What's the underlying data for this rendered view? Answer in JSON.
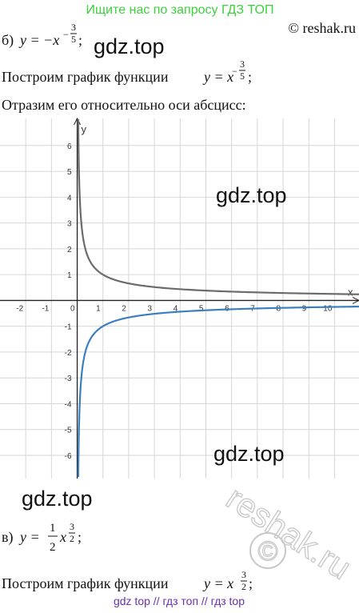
{
  "header": {
    "banner": "Ищите нас по запросу ГДЗ ТОП",
    "copyright": "© reshak.ru"
  },
  "part_b": {
    "label": "б)",
    "formula": "y = −x",
    "exp_sign": "−",
    "exp_num": "3",
    "exp_den": "5",
    "end": ";"
  },
  "text1": {
    "before": "Построим график функции",
    "formula": "y = x",
    "exp_sign": "−",
    "exp_num": "3",
    "exp_den": "5",
    "end": ";"
  },
  "text2": "Отразим его относительно оси абсцисс:",
  "graph": {
    "x_label": "x",
    "y_label": "y",
    "xlim": [
      -3,
      10.95
    ],
    "ylim": [
      -6.9,
      7.05
    ],
    "xticks": [
      -2,
      -1,
      0,
      1,
      2,
      3,
      4,
      5,
      6,
      7,
      8,
      9,
      10
    ],
    "yticks": [
      -6,
      -5,
      -4,
      -3,
      -2,
      -1,
      1,
      2,
      3,
      4,
      5,
      6
    ],
    "grid": true,
    "curves": [
      {
        "color": "#6b6b6b",
        "sign": 1
      },
      {
        "color": "#3a7fc1",
        "sign": -1
      }
    ]
  },
  "watermarks": [
    "gdz.top",
    "gdz.top",
    "gdz.top",
    "gdz.top",
    "reshak.ru",
    "©"
  ],
  "part_v": {
    "label": "в)",
    "formula": "y =",
    "coef_num": "1",
    "coef_den": "2",
    "var": "x",
    "exp_num": "3",
    "exp_den": "2",
    "end": ";"
  },
  "text3": {
    "before": "Построим график функции",
    "formula": "y = x",
    "exp_num": "3",
    "exp_den": "2",
    "end": ";"
  },
  "footer": "gdz top  //  гдз топ  //  гдз top"
}
